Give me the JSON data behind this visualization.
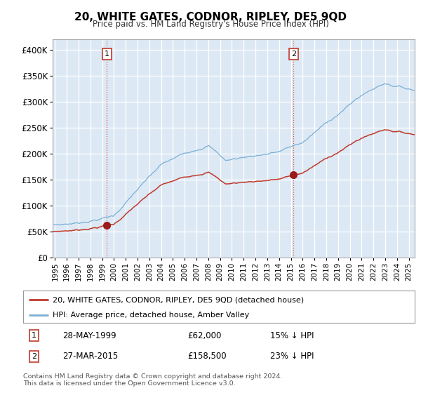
{
  "title": "20, WHITE GATES, CODNOR, RIPLEY, DE5 9QD",
  "subtitle": "Price paid vs. HM Land Registry's House Price Index (HPI)",
  "bg_color": "#dce9f5",
  "hpi_color": "#7bafd4",
  "price_color": "#c0392b",
  "marker_color": "#9b1a1a",
  "vline_color": "#e05050",
  "grid_color": "#c8c8c8",
  "ylim": [
    0,
    420000
  ],
  "yticks": [
    0,
    50000,
    100000,
    150000,
    200000,
    250000,
    300000,
    350000,
    400000
  ],
  "ytick_labels": [
    "£0",
    "£50K",
    "£100K",
    "£150K",
    "£200K",
    "£250K",
    "£300K",
    "£350K",
    "£400K"
  ],
  "sale1_date": 1999.41,
  "sale1_price": 62000,
  "sale1_label": "1",
  "sale1_text": "28-MAY-1999",
  "sale1_price_text": "£62,000",
  "sale1_note": "15% ↓ HPI",
  "sale2_date": 2015.23,
  "sale2_price": 158500,
  "sale2_label": "2",
  "sale2_text": "27-MAR-2015",
  "sale2_price_text": "£158,500",
  "sale2_note": "23% ↓ HPI",
  "legend_line1": "20, WHITE GATES, CODNOR, RIPLEY, DE5 9QD (detached house)",
  "legend_line2": "HPI: Average price, detached house, Amber Valley",
  "footnote1": "Contains HM Land Registry data © Crown copyright and database right 2024.",
  "footnote2": "This data is licensed under the Open Government Licence v3.0.",
  "xmin": 1994.8,
  "xmax": 2025.5
}
